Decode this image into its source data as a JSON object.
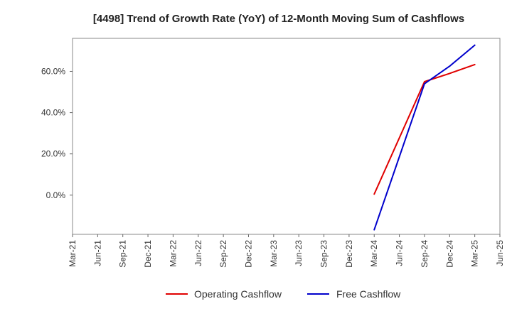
{
  "chart_data": {
    "type": "line",
    "title": "[4498]  Trend of Growth Rate (YoY) of 12-Month Moving Sum of Cashflows",
    "xlabel": "",
    "ylabel": "",
    "x_ticks": [
      "Mar-21",
      "Jun-21",
      "Sep-21",
      "Dec-21",
      "Mar-22",
      "Jun-22",
      "Sep-22",
      "Dec-22",
      "Mar-23",
      "Jun-23",
      "Sep-23",
      "Dec-23",
      "Mar-24",
      "Jun-24",
      "Sep-24",
      "Dec-24",
      "Mar-25",
      "Jun-25"
    ],
    "y_ticks": [
      0,
      20,
      40,
      60
    ],
    "y_tick_labels": [
      "0.0%",
      "20.0%",
      "40.0%",
      "60.0%"
    ],
    "ylim": [
      -19,
      76
    ],
    "grid": true,
    "legend_position": "bottom",
    "series": [
      {
        "name": "Operating Cashflow",
        "color": "#e00000",
        "x": [
          "Mar-24",
          "Sep-24",
          "Dec-24",
          "Mar-25"
        ],
        "values": [
          0.5,
          55.0,
          59.0,
          63.3
        ]
      },
      {
        "name": "Free Cashflow",
        "color": "#0000cc",
        "x": [
          "Mar-24",
          "Sep-24",
          "Dec-24",
          "Mar-25"
        ],
        "values": [
          -16.8,
          54.0,
          62.5,
          72.7
        ]
      }
    ]
  }
}
